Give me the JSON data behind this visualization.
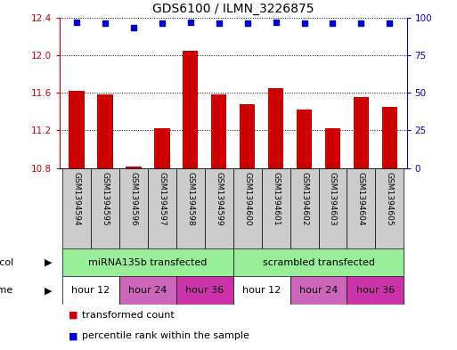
{
  "title": "GDS6100 / ILMN_3226875",
  "samples": [
    "GSM1394594",
    "GSM1394595",
    "GSM1394596",
    "GSM1394597",
    "GSM1394598",
    "GSM1394599",
    "GSM1394600",
    "GSM1394601",
    "GSM1394602",
    "GSM1394603",
    "GSM1394604",
    "GSM1394605"
  ],
  "bar_values": [
    11.62,
    11.58,
    10.82,
    11.22,
    12.05,
    11.58,
    11.48,
    11.65,
    11.42,
    11.22,
    11.55,
    11.45
  ],
  "percentile_values": [
    97,
    96,
    93,
    96,
    97,
    96,
    96,
    97,
    96,
    96,
    96,
    96
  ],
  "ylim": [
    10.8,
    12.4
  ],
  "yticks_left": [
    10.8,
    11.2,
    11.6,
    12.0,
    12.4
  ],
  "yticks_right": [
    0,
    25,
    50,
    75,
    100
  ],
  "bar_color": "#cc0000",
  "dot_color": "#0000cc",
  "protocol_labels": [
    "miRNA135b transfected",
    "scrambled transfected"
  ],
  "protocol_color": "#99ee99",
  "time_labels": [
    "hour 12",
    "hour 24",
    "hour 36",
    "hour 12",
    "hour 24",
    "hour 36"
  ],
  "time_colors": [
    "#ffffff",
    "#cc66bb",
    "#cc33aa",
    "#ffffff",
    "#cc66bb",
    "#cc33aa"
  ],
  "sample_box_color": "#cccccc",
  "legend_red": "#cc0000",
  "legend_blue": "#0000cc",
  "fig_bg": "#ffffff"
}
